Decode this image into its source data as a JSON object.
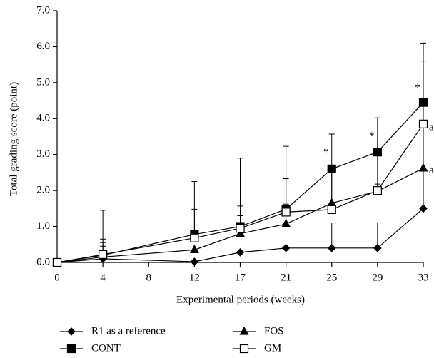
{
  "chart_data": {
    "type": "line",
    "y_label": "Total grading score (point)",
    "x_label": "Experimental periods (weeks)",
    "ylim": [
      0,
      7
    ],
    "yticks": [
      {
        "value": 0,
        "label": "0.0"
      },
      {
        "value": 1,
        "label": "1.0"
      },
      {
        "value": 2,
        "label": "2.0"
      },
      {
        "value": 3,
        "label": "3.0"
      },
      {
        "value": 4,
        "label": "4.0"
      },
      {
        "value": 5,
        "label": "5.0"
      },
      {
        "value": 6,
        "label": "6.0"
      },
      {
        "value": 7,
        "label": "7.0"
      }
    ],
    "xticks": [
      0,
      4,
      8,
      12,
      17,
      21,
      25,
      29,
      33
    ],
    "x": [
      0,
      4,
      12,
      17,
      21,
      25,
      29,
      33
    ],
    "series": [
      {
        "name": "R1 as a reference",
        "color": "#000000",
        "marker": "diamond",
        "filled": true,
        "values": [
          0,
          0.1,
          0.02,
          0.28,
          0.4,
          0.4,
          0.4,
          1.5
        ],
        "errors": [
          null,
          0.35,
          null,
          null,
          null,
          0.7,
          0.7,
          1.1
        ]
      },
      {
        "name": "FOS",
        "color": "#000000",
        "marker": "triangle",
        "filled": true,
        "values": [
          0,
          0.15,
          0.35,
          0.8,
          1.07,
          1.65,
          1.98,
          2.62
        ],
        "errors": [
          null,
          0.4,
          null,
          0.5,
          0.55,
          1.05,
          0.2,
          1.2
        ]
      },
      {
        "name": "CONT",
        "color": "#000000",
        "marker": "square",
        "filled": true,
        "values": [
          0,
          0.2,
          0.78,
          1.0,
          1.48,
          2.6,
          3.07,
          4.45
        ],
        "errors": [
          null,
          1.25,
          1.47,
          1.9,
          1.75,
          0.97,
          0.95,
          1.65
        ]
      },
      {
        "name": "GM",
        "color": "#000000",
        "marker": "square",
        "filled": false,
        "values": [
          0,
          0.22,
          0.68,
          0.95,
          1.4,
          1.47,
          2.0,
          3.85
        ],
        "errors": [
          null,
          0.43,
          0.8,
          0.62,
          0.93,
          1.23,
          1.4,
          1.75
        ]
      }
    ],
    "annotations": [
      {
        "text": "*",
        "x": 25,
        "y": 3.05
      },
      {
        "text": "*",
        "x": 29,
        "y": 3.5
      },
      {
        "text": "*",
        "x": 33,
        "y": 4.85
      },
      {
        "text": "a",
        "x": 33,
        "y": 3.75
      },
      {
        "text": "a",
        "x": 33,
        "y": 2.55
      }
    ]
  }
}
